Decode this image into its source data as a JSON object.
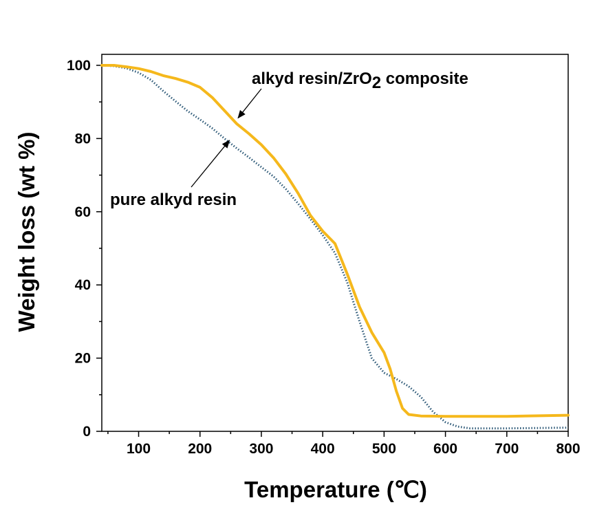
{
  "chart_data": {
    "type": "line",
    "xlabel": "Temperature (℃)",
    "ylabel": "Weight loss (wt %)",
    "xlim": [
      40,
      800
    ],
    "ylim": [
      0,
      103
    ],
    "xticks": [
      100,
      200,
      300,
      400,
      500,
      600,
      700,
      800
    ],
    "yticks": [
      0,
      20,
      40,
      60,
      80,
      100
    ],
    "grid": false,
    "legend": "none",
    "series": [
      {
        "name": "alkyd resin/ZrO2 composite",
        "color": "#f5b81c",
        "style": "solid",
        "x": [
          40,
          60,
          80,
          100,
          120,
          140,
          160,
          180,
          200,
          220,
          240,
          260,
          280,
          300,
          320,
          340,
          360,
          380,
          400,
          420,
          440,
          460,
          480,
          500,
          510,
          520,
          530,
          540,
          560,
          600,
          700,
          800
        ],
        "y": [
          100,
          100,
          99.6,
          99.1,
          98.3,
          97.2,
          96.4,
          95.4,
          94,
          91.2,
          87.6,
          84,
          81.3,
          78.3,
          74.7,
          70.3,
          65,
          59,
          54.7,
          51.3,
          43,
          34,
          27,
          21.5,
          17,
          11,
          6.3,
          4.6,
          4.2,
          4.1,
          4.1,
          4.4
        ]
      },
      {
        "name": "pure alkyd resin",
        "color": "#2e5a78",
        "style": "dotted",
        "x": [
          40,
          60,
          80,
          100,
          120,
          140,
          160,
          180,
          200,
          220,
          240,
          260,
          280,
          300,
          320,
          340,
          360,
          380,
          400,
          420,
          440,
          460,
          480,
          500,
          520,
          540,
          560,
          580,
          600,
          620,
          640,
          700,
          800
        ],
        "y": [
          100,
          99.8,
          99.2,
          98,
          96,
          93,
          90.2,
          87.5,
          85.2,
          82.8,
          80,
          77.3,
          74.8,
          72.2,
          69.6,
          66.2,
          62.2,
          58,
          53.6,
          48.7,
          40.7,
          30,
          20,
          16,
          14.3,
          12.3,
          9.4,
          5.3,
          2.5,
          1.3,
          0.8,
          0.8,
          1
        ]
      }
    ],
    "annotations": [
      {
        "label_main": "alkyd resin/ZrO",
        "label_sub": "2",
        "label_tail": " composite",
        "target": [
          262,
          85.6
        ]
      },
      {
        "label": "pure alkyd resin",
        "target": [
          248,
          79.5
        ]
      }
    ]
  }
}
